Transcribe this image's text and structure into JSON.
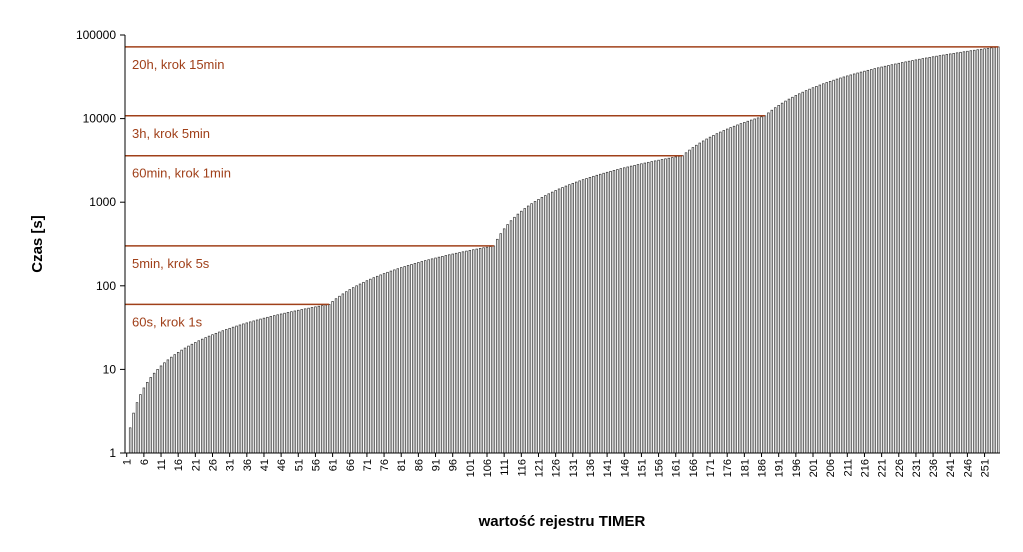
{
  "chart_data": {
    "type": "bar",
    "xlabel": "wartość rejestru TIMER",
    "ylabel": "Czas [s]",
    "log_y": true,
    "ylim": [
      1,
      100000
    ],
    "yticks": [
      1,
      10,
      100,
      1000,
      10000,
      100000
    ],
    "color": "#ffffff",
    "edge_color": "#333333",
    "threshold_color": "#a0401a",
    "thresholds": [
      {
        "value": 60,
        "label": "60s, krok 1s"
      },
      {
        "value": 300,
        "label": "5min, krok 5s"
      },
      {
        "value": 3600,
        "label": "60min, krok 1min"
      },
      {
        "value": 10800,
        "label": "3h, krok 5min"
      },
      {
        "value": 72000,
        "label": "20h, krok 15min"
      }
    ],
    "categories": [
      1,
      null,
      null,
      null,
      null,
      6,
      null,
      null,
      null,
      null,
      11,
      null,
      null,
      null,
      null,
      16,
      null,
      null,
      null,
      null,
      21,
      null,
      null,
      null,
      null,
      26,
      null,
      null,
      null,
      null,
      31,
      null,
      null,
      null,
      null,
      36,
      null,
      null,
      null,
      null,
      41,
      null,
      null,
      null,
      null,
      46,
      null,
      null,
      null,
      null,
      51,
      null,
      null,
      null,
      null,
      56,
      null,
      null,
      null,
      null,
      61,
      null,
      null,
      null,
      null,
      66,
      null,
      null,
      null,
      null,
      71,
      null,
      null,
      null,
      null,
      76,
      null,
      null,
      null,
      null,
      81,
      null,
      null,
      null,
      null,
      86,
      null,
      null,
      null,
      null,
      91,
      null,
      null,
      null,
      null,
      96,
      null,
      null,
      null,
      null,
      101,
      null,
      null,
      null,
      null,
      106,
      null,
      null,
      null,
      null,
      111,
      null,
      null,
      null,
      null,
      116,
      null,
      null,
      null,
      null,
      121,
      null,
      null,
      null,
      null,
      126,
      null,
      null,
      null,
      null,
      131,
      null,
      null,
      null,
      null,
      136,
      null,
      null,
      null,
      null,
      141,
      null,
      null,
      null,
      null,
      146,
      null,
      null,
      null,
      null,
      151,
      null,
      null,
      null,
      null,
      156,
      null,
      null,
      null,
      null,
      161,
      null,
      null,
      null,
      null,
      166,
      null,
      null,
      null,
      null,
      171,
      null,
      null,
      null,
      null,
      176,
      null,
      null,
      null,
      null,
      181,
      null,
      null,
      null,
      null,
      186,
      null,
      null,
      null,
      null,
      191,
      null,
      null,
      null,
      null,
      196,
      null,
      null,
      null,
      null,
      201,
      null,
      null,
      null,
      null,
      206,
      null,
      null,
      null,
      null,
      211,
      null,
      null,
      null,
      null,
      216,
      null,
      null,
      null,
      null,
      221,
      null,
      null,
      null,
      null,
      226,
      null,
      null,
      null,
      null,
      231,
      null,
      null,
      null,
      null,
      236,
      null,
      null,
      null,
      null,
      241,
      null,
      null,
      null,
      null,
      246,
      null,
      null,
      null,
      null,
      251,
      null,
      null,
      null,
      null
    ],
    "values": [
      1,
      2,
      3,
      4,
      5,
      6,
      7,
      8,
      9,
      10,
      11,
      12,
      13,
      14,
      15,
      16,
      17,
      18,
      19,
      20,
      21,
      22,
      23,
      24,
      25,
      26,
      27,
      28,
      29,
      30,
      31,
      32,
      33,
      34,
      35,
      36,
      37,
      38,
      39,
      40,
      41,
      42,
      43,
      44,
      45,
      46,
      47,
      48,
      49,
      50,
      51,
      52,
      53,
      54,
      55,
      56,
      57,
      58,
      59,
      60,
      65,
      70,
      75,
      80,
      85,
      90,
      95,
      100,
      105,
      110,
      115,
      120,
      125,
      130,
      135,
      140,
      145,
      150,
      155,
      160,
      165,
      170,
      175,
      180,
      185,
      190,
      195,
      200,
      205,
      210,
      215,
      220,
      225,
      230,
      235,
      240,
      245,
      250,
      255,
      260,
      265,
      270,
      275,
      280,
      285,
      290,
      295,
      300,
      360,
      420,
      480,
      540,
      600,
      660,
      720,
      780,
      840,
      900,
      960,
      1020,
      1080,
      1140,
      1200,
      1260,
      1320,
      1380,
      1440,
      1500,
      1560,
      1620,
      1680,
      1740,
      1800,
      1860,
      1920,
      1980,
      2040,
      2100,
      2160,
      2220,
      2280,
      2340,
      2400,
      2460,
      2520,
      2580,
      2640,
      2700,
      2760,
      2820,
      2880,
      2940,
      3000,
      3060,
      3120,
      3180,
      3240,
      3300,
      3360,
      3420,
      3480,
      3540,
      3600,
      3900,
      4200,
      4500,
      4800,
      5100,
      5400,
      5700,
      6000,
      6300,
      6600,
      6900,
      7200,
      7500,
      7800,
      8100,
      8400,
      8700,
      9000,
      9300,
      9600,
      9900,
      10200,
      10500,
      10800,
      11700,
      12600,
      13500,
      14400,
      15300,
      16200,
      17100,
      18000,
      18900,
      19800,
      20700,
      21600,
      22500,
      23400,
      24300,
      25200,
      26100,
      27000,
      27900,
      28800,
      29700,
      30600,
      31500,
      32400,
      33300,
      34200,
      35100,
      36000,
      36900,
      37800,
      38700,
      39600,
      40500,
      41400,
      42300,
      43200,
      44100,
      45000,
      45900,
      46800,
      47700,
      48600,
      49500,
      50400,
      51300,
      52200,
      53100,
      54000,
      54900,
      55800,
      56700,
      57600,
      58500,
      59400,
      60300,
      61200,
      62100,
      63000,
      63900,
      64800,
      65700,
      66600,
      67500,
      68400,
      69300,
      70200,
      71100,
      72000
    ]
  }
}
